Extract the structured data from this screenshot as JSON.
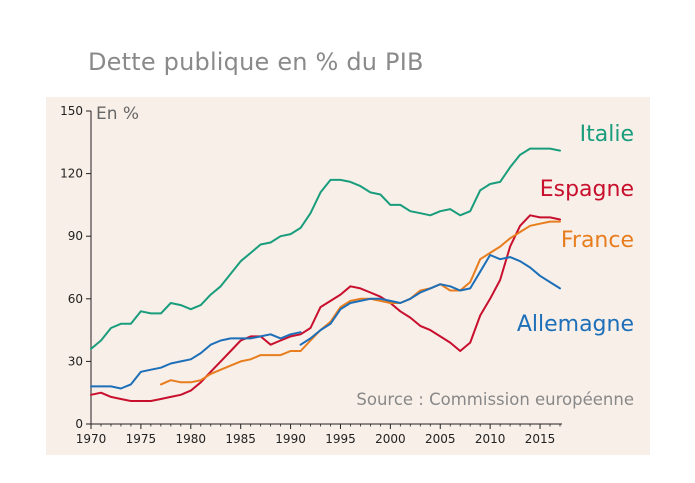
{
  "title": "Dette publique en % du PIB",
  "chart_data": {
    "type": "line",
    "title": "Dette publique en % du PIB",
    "ylabel": "En %",
    "xlabel": "",
    "source": "Source : Commission européenne",
    "xlim": [
      1970,
      2017
    ],
    "ylim": [
      0,
      150
    ],
    "xticks": [
      1970,
      1975,
      1980,
      1985,
      1990,
      1995,
      2000,
      2005,
      2010,
      2015
    ],
    "yticks": [
      0,
      30,
      60,
      90,
      120,
      150
    ],
    "grid": false,
    "background": "#f8efe8",
    "series": [
      {
        "name": "Italie",
        "color": "#1a9d7c",
        "points": [
          [
            1970,
            36
          ],
          [
            1971,
            40
          ],
          [
            1972,
            46
          ],
          [
            1973,
            48
          ],
          [
            1974,
            48
          ],
          [
            1975,
            54
          ],
          [
            1976,
            53
          ],
          [
            1977,
            53
          ],
          [
            1978,
            58
          ],
          [
            1979,
            57
          ],
          [
            1980,
            55
          ],
          [
            1981,
            57
          ],
          [
            1982,
            62
          ],
          [
            1983,
            66
          ],
          [
            1984,
            72
          ],
          [
            1985,
            78
          ],
          [
            1986,
            82
          ],
          [
            1987,
            86
          ],
          [
            1988,
            87
          ],
          [
            1989,
            90
          ],
          [
            1990,
            91
          ],
          [
            1991,
            94
          ],
          [
            1992,
            101
          ],
          [
            1993,
            111
          ],
          [
            1994,
            117
          ],
          [
            1995,
            117
          ],
          [
            1996,
            116
          ],
          [
            1997,
            114
          ],
          [
            1998,
            111
          ],
          [
            1999,
            110
          ],
          [
            2000,
            105
          ],
          [
            2001,
            105
          ],
          [
            2002,
            102
          ],
          [
            2003,
            101
          ],
          [
            2004,
            100
          ],
          [
            2005,
            102
          ],
          [
            2006,
            103
          ],
          [
            2007,
            100
          ],
          [
            2008,
            102
          ],
          [
            2009,
            112
          ],
          [
            2010,
            115
          ],
          [
            2011,
            116
          ],
          [
            2012,
            123
          ],
          [
            2013,
            129
          ],
          [
            2014,
            132
          ],
          [
            2015,
            132
          ],
          [
            2016,
            132
          ],
          [
            2017,
            131
          ]
        ]
      },
      {
        "name": "Espagne",
        "color": "#c8102e",
        "points": [
          [
            1970,
            14
          ],
          [
            1971,
            15
          ],
          [
            1972,
            13
          ],
          [
            1973,
            12
          ],
          [
            1974,
            11
          ],
          [
            1975,
            11
          ],
          [
            1976,
            11
          ],
          [
            1977,
            12
          ],
          [
            1978,
            13
          ],
          [
            1979,
            14
          ],
          [
            1980,
            16
          ],
          [
            1981,
            20
          ],
          [
            1982,
            25
          ],
          [
            1983,
            30
          ],
          [
            1984,
            35
          ],
          [
            1985,
            40
          ],
          [
            1986,
            42
          ],
          [
            1987,
            42
          ],
          [
            1988,
            38
          ],
          [
            1989,
            40
          ],
          [
            1990,
            42
          ],
          [
            1991,
            43
          ],
          [
            1992,
            46
          ],
          [
            1993,
            56
          ],
          [
            1994,
            59
          ],
          [
            1995,
            62
          ],
          [
            1996,
            66
          ],
          [
            1997,
            65
          ],
          [
            1998,
            63
          ],
          [
            1999,
            61
          ],
          [
            2000,
            58
          ],
          [
            2001,
            54
          ],
          [
            2002,
            51
          ],
          [
            2003,
            47
          ],
          [
            2004,
            45
          ],
          [
            2005,
            42
          ],
          [
            2006,
            39
          ],
          [
            2007,
            35
          ],
          [
            2008,
            39
          ],
          [
            2009,
            52
          ],
          [
            2010,
            60
          ],
          [
            2011,
            69
          ],
          [
            2012,
            85
          ],
          [
            2013,
            95
          ],
          [
            2014,
            100
          ],
          [
            2015,
            99
          ],
          [
            2016,
            99
          ],
          [
            2017,
            98
          ]
        ]
      },
      {
        "name": "France",
        "color": "#e87d1e",
        "points": [
          [
            1977,
            19
          ],
          [
            1978,
            21
          ],
          [
            1979,
            20
          ],
          [
            1980,
            20
          ],
          [
            1981,
            21
          ],
          [
            1982,
            24
          ],
          [
            1983,
            26
          ],
          [
            1984,
            28
          ],
          [
            1985,
            30
          ],
          [
            1986,
            31
          ],
          [
            1987,
            33
          ],
          [
            1988,
            33
          ],
          [
            1989,
            33
          ],
          [
            1990,
            35
          ],
          [
            1991,
            35
          ],
          [
            1992,
            40
          ],
          [
            1993,
            45
          ],
          [
            1994,
            49
          ],
          [
            1995,
            56
          ],
          [
            1996,
            59
          ],
          [
            1997,
            60
          ],
          [
            1998,
            60
          ],
          [
            1999,
            59
          ],
          [
            2000,
            58
          ],
          [
            2001,
            58
          ],
          [
            2002,
            60
          ],
          [
            2003,
            64
          ],
          [
            2004,
            65
          ],
          [
            2005,
            67
          ],
          [
            2006,
            64
          ],
          [
            2007,
            64
          ],
          [
            2008,
            68
          ],
          [
            2009,
            79
          ],
          [
            2010,
            82
          ],
          [
            2011,
            85
          ],
          [
            2012,
            89
          ],
          [
            2013,
            92
          ],
          [
            2014,
            95
          ],
          [
            2015,
            96
          ],
          [
            2016,
            97
          ],
          [
            2017,
            97
          ]
        ]
      },
      {
        "name": "Allemagne",
        "color": "#1c6fb8",
        "points": [
          [
            1970,
            18
          ],
          [
            1971,
            18
          ],
          [
            1972,
            18
          ],
          [
            1973,
            17
          ],
          [
            1974,
            19
          ],
          [
            1975,
            25
          ],
          [
            1976,
            26
          ],
          [
            1977,
            27
          ],
          [
            1978,
            29
          ],
          [
            1979,
            30
          ],
          [
            1980,
            31
          ],
          [
            1981,
            34
          ],
          [
            1982,
            38
          ],
          [
            1983,
            40
          ],
          [
            1984,
            41
          ],
          [
            1985,
            41
          ],
          [
            1986,
            41
          ],
          [
            1987,
            42
          ],
          [
            1988,
            43
          ],
          [
            1989,
            41
          ],
          [
            1990,
            43
          ],
          [
            1991,
            44
          ],
          [
            null,
            null
          ],
          [
            1991,
            38
          ],
          [
            1992,
            41
          ],
          [
            1993,
            45
          ],
          [
            1994,
            48
          ],
          [
            1995,
            55
          ],
          [
            1996,
            58
          ],
          [
            1997,
            59
          ],
          [
            1998,
            60
          ],
          [
            1999,
            60
          ],
          [
            2000,
            59
          ],
          [
            2001,
            58
          ],
          [
            2002,
            60
          ],
          [
            2003,
            63
          ],
          [
            2004,
            65
          ],
          [
            2005,
            67
          ],
          [
            2006,
            66
          ],
          [
            2007,
            64
          ],
          [
            2008,
            65
          ],
          [
            2009,
            73
          ],
          [
            2010,
            81
          ],
          [
            2011,
            79
          ],
          [
            2012,
            80
          ],
          [
            2013,
            78
          ],
          [
            2014,
            75
          ],
          [
            2015,
            71
          ],
          [
            2016,
            68
          ],
          [
            2017,
            65
          ]
        ]
      }
    ]
  }
}
